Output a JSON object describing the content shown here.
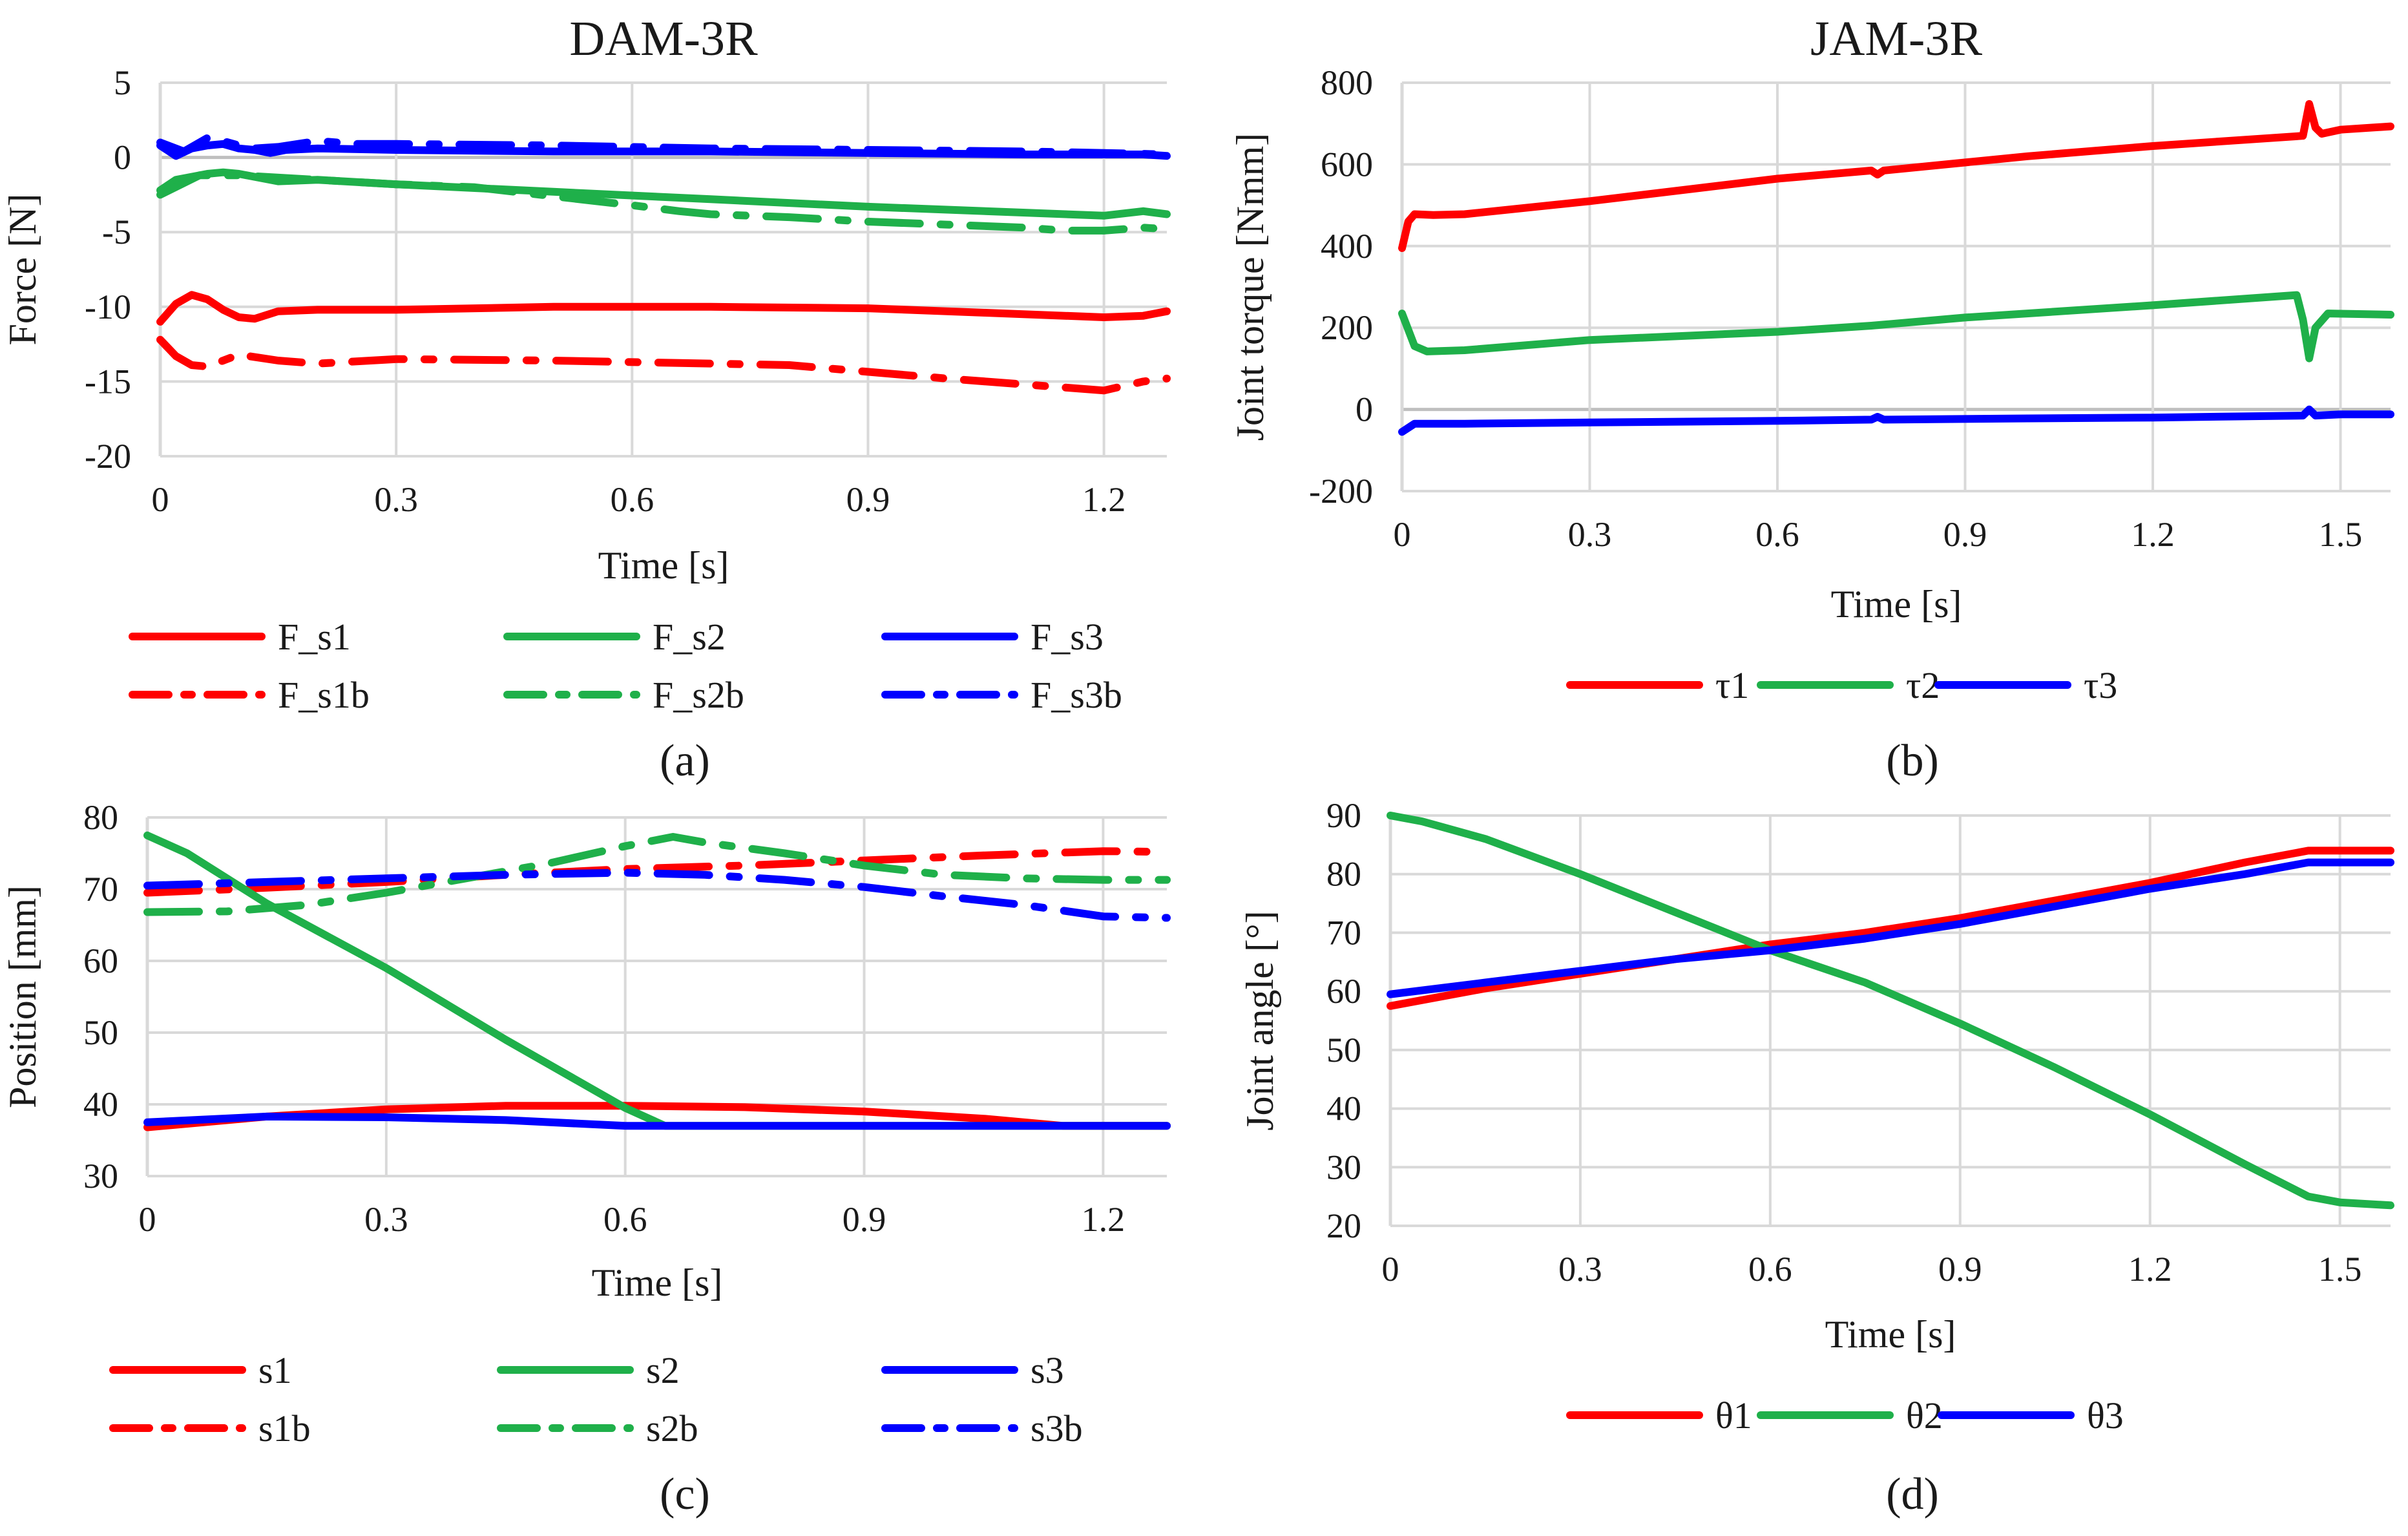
{
  "colors": {
    "red": "#ff0000",
    "green": "#1fb04a",
    "blue": "#0000ff"
  },
  "chart_data": [
    {
      "id": "a",
      "type": "line",
      "caption": "(a)",
      "title": "DAM-3R",
      "xlabel": "Time [s]",
      "ylabel": "Force [N]",
      "xlim": [
        0,
        1.28
      ],
      "ylim": [
        -20,
        5
      ],
      "xticks": [
        0,
        0.3,
        0.6,
        0.9,
        1.2
      ],
      "xtick_labels": [
        "0",
        "0.3",
        "0.6",
        "0.9",
        "1.2"
      ],
      "yticks": [
        -20,
        -15,
        -10,
        -5,
        0,
        5
      ],
      "ytick_labels": [
        "-20",
        "-15",
        "-10",
        "-5",
        "0",
        "5"
      ],
      "zero_line": true,
      "series": [
        {
          "name": "F_s1",
          "color": "red",
          "dash": "solid",
          "x": [
            0,
            0.02,
            0.04,
            0.06,
            0.08,
            0.1,
            0.12,
            0.15,
            0.2,
            0.3,
            0.5,
            0.7,
            0.9,
            1.05,
            1.2,
            1.25,
            1.28
          ],
          "y": [
            -11,
            -9.8,
            -9.2,
            -9.5,
            -10.2,
            -10.7,
            -10.8,
            -10.3,
            -10.2,
            -10.2,
            -10,
            -10,
            -10.1,
            -10.4,
            -10.7,
            -10.6,
            -10.3
          ]
        },
        {
          "name": "F_s1b",
          "color": "red",
          "dash": "dashdot",
          "x": [
            0,
            0.02,
            0.04,
            0.06,
            0.08,
            0.1,
            0.15,
            0.2,
            0.3,
            0.5,
            0.7,
            0.8,
            1.0,
            1.1,
            1.2,
            1.25,
            1.28
          ],
          "y": [
            -12.2,
            -13.3,
            -13.9,
            -14,
            -13.6,
            -13.2,
            -13.6,
            -13.8,
            -13.5,
            -13.6,
            -13.8,
            -13.9,
            -14.8,
            -15.2,
            -15.6,
            -15,
            -14.8
          ]
        },
        {
          "name": "F_s2",
          "color": "green",
          "dash": "solid",
          "x": [
            0,
            0.02,
            0.04,
            0.06,
            0.08,
            0.1,
            0.15,
            0.2,
            0.3,
            0.5,
            0.7,
            0.9,
            1.1,
            1.2,
            1.25,
            1.28
          ],
          "y": [
            -2.2,
            -1.5,
            -1.3,
            -1.1,
            -1,
            -1.1,
            -1.6,
            -1.5,
            -1.8,
            -2.3,
            -2.8,
            -3.3,
            -3.7,
            -3.9,
            -3.6,
            -3.8
          ]
        },
        {
          "name": "F_s2b",
          "color": "green",
          "dash": "dashdot",
          "x": [
            0,
            0.05,
            0.1,
            0.2,
            0.3,
            0.4,
            0.5,
            0.6,
            0.66,
            0.7,
            0.8,
            0.9,
            1.0,
            1.1,
            1.15,
            1.2,
            1.25,
            1.28
          ],
          "y": [
            -2.5,
            -1.2,
            -1.2,
            -1.5,
            -1.8,
            -2,
            -2.6,
            -3.2,
            -3.6,
            -3.8,
            -4,
            -4.3,
            -4.5,
            -4.7,
            -4.9,
            -4.9,
            -4.7,
            -4.8
          ]
        },
        {
          "name": "F_s3",
          "color": "blue",
          "dash": "solid",
          "x": [
            0,
            0.02,
            0.04,
            0.06,
            0.08,
            0.1,
            0.12,
            0.14,
            0.16,
            0.2,
            0.3,
            0.5,
            0.7,
            0.9,
            1.1,
            1.2,
            1.25,
            1.28
          ],
          "y": [
            0.8,
            0.1,
            0.6,
            0.8,
            0.9,
            0.6,
            0.5,
            0.3,
            0.5,
            0.6,
            0.5,
            0.4,
            0.4,
            0.3,
            0.2,
            0.2,
            0.2,
            0.1
          ]
        },
        {
          "name": "F_s3b",
          "color": "blue",
          "dash": "dashdot",
          "x": [
            0,
            0.03,
            0.06,
            0.08,
            0.1,
            0.12,
            0.15,
            0.2,
            0.25,
            0.3,
            0.5,
            0.7,
            0.9,
            1.1,
            1.2,
            1.28
          ],
          "y": [
            1,
            0.4,
            1.3,
            1.1,
            0.8,
            0.6,
            0.7,
            1.1,
            0.9,
            0.9,
            0.8,
            0.6,
            0.5,
            0.4,
            0.3,
            0.2
          ]
        }
      ],
      "legend": {
        "columns": 3,
        "entries": [
          "F_s1",
          "F_s2",
          "F_s3",
          "F_s1b",
          "F_s2b",
          "F_s3b"
        ]
      }
    },
    {
      "id": "b",
      "type": "line",
      "caption": "(b)",
      "title": "JAM-3R",
      "xlabel": "Time [s]",
      "ylabel": "Joint torque [Nmm]",
      "xlim": [
        0,
        1.58
      ],
      "ylim": [
        -200,
        800
      ],
      "xticks": [
        0,
        0.3,
        0.6,
        0.9,
        1.2,
        1.5
      ],
      "xtick_labels": [
        "0",
        "0.3",
        "0.6",
        "0.9",
        "1.2",
        "1.5"
      ],
      "yticks": [
        -200,
        0,
        200,
        400,
        600,
        800
      ],
      "ytick_labels": [
        "-200",
        "0",
        "200",
        "400",
        "600",
        "800"
      ],
      "zero_line": true,
      "series": [
        {
          "name": "τ1",
          "color": "red",
          "dash": "solid",
          "x": [
            0,
            0.01,
            0.02,
            0.05,
            0.1,
            0.3,
            0.6,
            0.75,
            0.76,
            0.77,
            1.0,
            1.2,
            1.44,
            1.45,
            1.46,
            1.47,
            1.5,
            1.58
          ],
          "y": [
            395,
            460,
            478,
            476,
            478,
            510,
            565,
            585,
            575,
            585,
            620,
            645,
            670,
            748,
            690,
            675,
            685,
            693
          ]
        },
        {
          "name": "τ2",
          "color": "green",
          "dash": "solid",
          "x": [
            0,
            0.02,
            0.04,
            0.1,
            0.3,
            0.6,
            0.75,
            0.9,
            1.2,
            1.43,
            1.44,
            1.45,
            1.46,
            1.48,
            1.58
          ],
          "y": [
            235,
            155,
            142,
            145,
            170,
            190,
            205,
            225,
            255,
            280,
            220,
            125,
            200,
            235,
            232
          ]
        },
        {
          "name": "τ3",
          "color": "blue",
          "dash": "solid",
          "x": [
            0,
            0.02,
            0.1,
            0.3,
            0.6,
            0.75,
            0.76,
            0.77,
            1.0,
            1.2,
            1.44,
            1.45,
            1.46,
            1.5,
            1.58
          ],
          "y": [
            -55,
            -35,
            -35,
            -32,
            -28,
            -25,
            -18,
            -25,
            -22,
            -20,
            -15,
            0,
            -15,
            -12,
            -12
          ]
        }
      ],
      "legend": {
        "columns": 3,
        "entries": [
          "τ1",
          "τ2",
          "τ3"
        ]
      }
    },
    {
      "id": "c",
      "type": "line",
      "caption": "(c)",
      "title": "",
      "xlabel": "Time [s]",
      "ylabel": "Position [mm]",
      "xlim": [
        0,
        1.28
      ],
      "ylim": [
        30,
        80
      ],
      "xticks": [
        0,
        0.3,
        0.6,
        0.9,
        1.2
      ],
      "xtick_labels": [
        "0",
        "0.3",
        "0.6",
        "0.9",
        "1.2"
      ],
      "yticks": [
        30,
        40,
        50,
        60,
        70,
        80
      ],
      "ytick_labels": [
        "30",
        "40",
        "50",
        "60",
        "70",
        "80"
      ],
      "zero_line": false,
      "series": [
        {
          "name": "s1",
          "color": "red",
          "dash": "solid",
          "x": [
            0,
            0.15,
            0.3,
            0.45,
            0.6,
            0.75,
            0.9,
            1.05,
            1.15,
            1.28
          ],
          "y": [
            36.8,
            38.3,
            39.3,
            39.8,
            39.8,
            39.6,
            39,
            38,
            37,
            37
          ]
        },
        {
          "name": "s1b",
          "color": "red",
          "dash": "dashdot",
          "x": [
            0,
            0.15,
            0.3,
            0.45,
            0.6,
            0.75,
            0.9,
            1.05,
            1.2,
            1.28
          ],
          "y": [
            69.5,
            70.2,
            71,
            72,
            72.8,
            73.3,
            74,
            74.7,
            75.3,
            75.2
          ]
        },
        {
          "name": "s2",
          "color": "green",
          "dash": "solid",
          "x": [
            0,
            0.05,
            0.15,
            0.3,
            0.45,
            0.6,
            0.65,
            0.8,
            1.0,
            1.2,
            1.28
          ],
          "y": [
            77.5,
            75,
            68,
            59,
            49,
            39.5,
            37,
            37,
            37,
            37,
            37
          ]
        },
        {
          "name": "s2b",
          "color": "green",
          "dash": "dashdot",
          "x": [
            0,
            0.1,
            0.2,
            0.3,
            0.4,
            0.5,
            0.6,
            0.66,
            0.7,
            0.8,
            0.9,
            1.0,
            1.1,
            1.2,
            1.28
          ],
          "y": [
            66.8,
            66.9,
            67.8,
            69.5,
            71.5,
            73.5,
            76,
            77.3,
            76.5,
            75,
            73.3,
            72,
            71.5,
            71.3,
            71.3
          ]
        },
        {
          "name": "s3",
          "color": "blue",
          "dash": "solid",
          "x": [
            0,
            0.15,
            0.3,
            0.45,
            0.6,
            0.65,
            0.8,
            1.0,
            1.2,
            1.28
          ],
          "y": [
            37.5,
            38.3,
            38.2,
            37.8,
            37,
            37,
            37,
            37,
            37,
            37
          ]
        },
        {
          "name": "s3b",
          "color": "blue",
          "dash": "dashdot",
          "x": [
            0,
            0.15,
            0.3,
            0.45,
            0.6,
            0.7,
            0.8,
            0.9,
            1.0,
            1.1,
            1.2,
            1.28
          ],
          "y": [
            70.5,
            71,
            71.5,
            72,
            72.3,
            72,
            71.3,
            70.3,
            69,
            67.8,
            66.2,
            66
          ]
        }
      ],
      "legend": {
        "columns": 3,
        "entries": [
          "s1",
          "s2",
          "s3",
          "s1b",
          "s2b",
          "s3b"
        ]
      }
    },
    {
      "id": "d",
      "type": "line",
      "caption": "(d)",
      "title": "",
      "xlabel": "Time [s]",
      "ylabel": "Joint angle [°]",
      "xlim": [
        0,
        1.58
      ],
      "ylim": [
        20,
        90
      ],
      "xticks": [
        0,
        0.3,
        0.6,
        0.9,
        1.2,
        1.5
      ],
      "xtick_labels": [
        "0",
        "0.3",
        "0.6",
        "0.9",
        "1.2",
        "1.5"
      ],
      "yticks": [
        20,
        30,
        40,
        50,
        60,
        70,
        80,
        90
      ],
      "ytick_labels": [
        "20",
        "30",
        "40",
        "50",
        "60",
        "70",
        "80",
        "90"
      ],
      "zero_line": false,
      "series": [
        {
          "name": "θ1",
          "color": "red",
          "dash": "solid",
          "x": [
            0,
            0.15,
            0.3,
            0.45,
            0.6,
            0.75,
            0.9,
            1.05,
            1.2,
            1.35,
            1.45,
            1.58
          ],
          "y": [
            57.5,
            60.5,
            63,
            65.5,
            68,
            70,
            72.5,
            75.5,
            78.5,
            82,
            84,
            84
          ]
        },
        {
          "name": "θ2",
          "color": "green",
          "dash": "solid",
          "x": [
            0,
            0.05,
            0.15,
            0.3,
            0.45,
            0.6,
            0.75,
            0.9,
            1.05,
            1.2,
            1.35,
            1.45,
            1.5,
            1.58
          ],
          "y": [
            90,
            89,
            86,
            80,
            73.5,
            67,
            61.5,
            54.5,
            47,
            39,
            30.5,
            25,
            24,
            23.5
          ]
        },
        {
          "name": "θ3",
          "color": "blue",
          "dash": "solid",
          "x": [
            0,
            0.15,
            0.3,
            0.45,
            0.6,
            0.75,
            0.9,
            1.05,
            1.2,
            1.35,
            1.45,
            1.58
          ],
          "y": [
            59.5,
            61.5,
            63.5,
            65.5,
            67,
            69,
            71.5,
            74.5,
            77.5,
            80,
            82,
            82
          ]
        }
      ],
      "legend": {
        "columns": 3,
        "entries": [
          "θ1",
          "θ2",
          "θ3"
        ]
      }
    }
  ]
}
